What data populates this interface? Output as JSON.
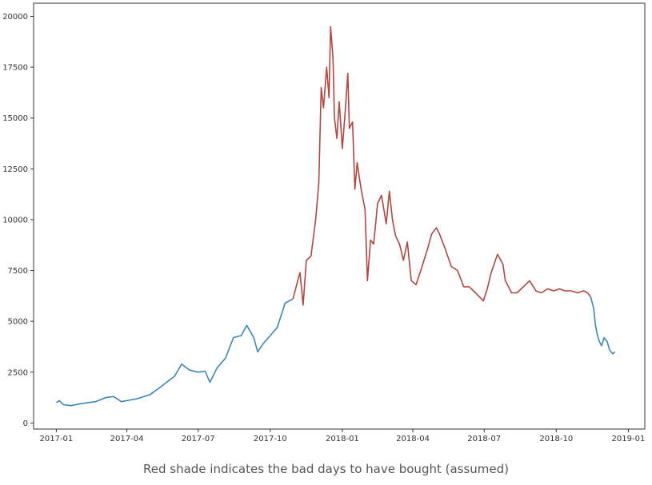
{
  "caption": "Red shade indicates the bad days to have bought (assumed)",
  "chart_data": {
    "type": "line",
    "title": "",
    "xlabel": "",
    "ylabel": "",
    "ylim": [
      -300,
      20650
    ],
    "xlim": [
      "2016-12-03",
      "2019-01-22"
    ],
    "grid": false,
    "x_ticks": [
      "2017-01",
      "2017-04",
      "2017-07",
      "2017-10",
      "2018-01",
      "2018-04",
      "2018-07",
      "2018-10",
      "2019-01"
    ],
    "y_ticks": [
      "0",
      "2500",
      "5000",
      "7500",
      "10000",
      "12500",
      "15000",
      "17500",
      "20000"
    ],
    "series": [
      {
        "color": "#3a87bf",
        "x": [
          "2017-01-01",
          "2017-01-05",
          "2017-01-10",
          "2017-01-20",
          "2017-02-01",
          "2017-02-20",
          "2017-03-05",
          "2017-03-15",
          "2017-03-25",
          "2017-04-01",
          "2017-04-15",
          "2017-05-01",
          "2017-05-15",
          "2017-05-25",
          "2017-06-01",
          "2017-06-10",
          "2017-06-20",
          "2017-07-01",
          "2017-07-10",
          "2017-07-16",
          "2017-07-25",
          "2017-08-05",
          "2017-08-15",
          "2017-08-25",
          "2017-09-01",
          "2017-09-10",
          "2017-09-15",
          "2017-09-22",
          "2017-10-01",
          "2017-10-10",
          "2017-10-20",
          "2017-10-25",
          "2017-10-30"
        ],
        "values": [
          1000,
          1100,
          900,
          850,
          950,
          1050,
          1250,
          1300,
          1050,
          1100,
          1200,
          1400,
          1800,
          2100,
          2300,
          2900,
          2600,
          2500,
          2550,
          2000,
          2700,
          3200,
          4200,
          4300,
          4800,
          4200,
          3500,
          3900,
          4300,
          4700,
          5900,
          6000,
          6100
        ]
      },
      {
        "color": "#b5453f",
        "x": [
          "2017-10-30",
          "2017-11-05",
          "2017-11-08",
          "2017-11-12",
          "2017-11-16",
          "2017-11-22",
          "2017-11-28",
          "2017-12-02",
          "2017-12-05",
          "2017-12-08",
          "2017-12-12",
          "2017-12-15",
          "2017-12-17",
          "2017-12-20",
          "2017-12-22",
          "2017-12-25",
          "2017-12-28",
          "2018-01-01",
          "2018-01-04",
          "2018-01-08",
          "2018-01-10",
          "2018-01-14",
          "2018-01-17",
          "2018-01-20",
          "2018-01-25",
          "2018-01-30",
          "2018-02-02",
          "2018-02-06",
          "2018-02-10",
          "2018-02-15",
          "2018-02-20",
          "2018-02-26",
          "2018-03-02",
          "2018-03-06",
          "2018-03-10",
          "2018-03-15",
          "2018-03-20",
          "2018-03-25",
          "2018-03-30",
          "2018-04-05",
          "2018-04-12",
          "2018-04-20",
          "2018-04-25",
          "2018-05-01",
          "2018-05-05",
          "2018-05-12",
          "2018-05-20",
          "2018-05-28",
          "2018-06-05",
          "2018-06-12",
          "2018-06-20",
          "2018-06-25",
          "2018-06-30",
          "2018-07-05",
          "2018-07-10",
          "2018-07-18",
          "2018-07-25",
          "2018-07-28",
          "2018-08-05",
          "2018-08-12",
          "2018-08-20",
          "2018-08-28",
          "2018-09-05",
          "2018-09-12",
          "2018-09-20",
          "2018-09-28",
          "2018-10-05",
          "2018-10-12",
          "2018-10-20",
          "2018-10-28",
          "2018-11-05",
          "2018-11-10",
          "2018-11-14"
        ],
        "values": [
          6100,
          7000,
          7400,
          5800,
          8000,
          8200,
          10000,
          11800,
          16500,
          15500,
          17500,
          16000,
          19500,
          18000,
          15000,
          14000,
          15800,
          13500,
          15000,
          17200,
          14500,
          14800,
          11500,
          12800,
          11500,
          10500,
          7000,
          9000,
          8800,
          10800,
          11200,
          9800,
          11400,
          10000,
          9200,
          8800,
          8000,
          8900,
          7000,
          6800,
          7600,
          8600,
          9300,
          9600,
          9300,
          8600,
          7700,
          7500,
          6700,
          6700,
          6400,
          6200,
          6000,
          6600,
          7400,
          8300,
          7800,
          7000,
          6400,
          6400,
          6700,
          7000,
          6500,
          6400,
          6600,
          6500,
          6600,
          6500,
          6500,
          6400,
          6500,
          6400,
          6200
        ]
      },
      {
        "color": "#3a87bf",
        "x": [
          "2018-11-14",
          "2018-11-18",
          "2018-11-20",
          "2018-11-22",
          "2018-11-25",
          "2018-11-28",
          "2018-12-01",
          "2018-12-05",
          "2018-12-08",
          "2018-12-12",
          "2018-12-15"
        ],
        "values": [
          6200,
          5600,
          4800,
          4400,
          4000,
          3800,
          4200,
          4000,
          3600,
          3400,
          3500
        ]
      }
    ]
  }
}
